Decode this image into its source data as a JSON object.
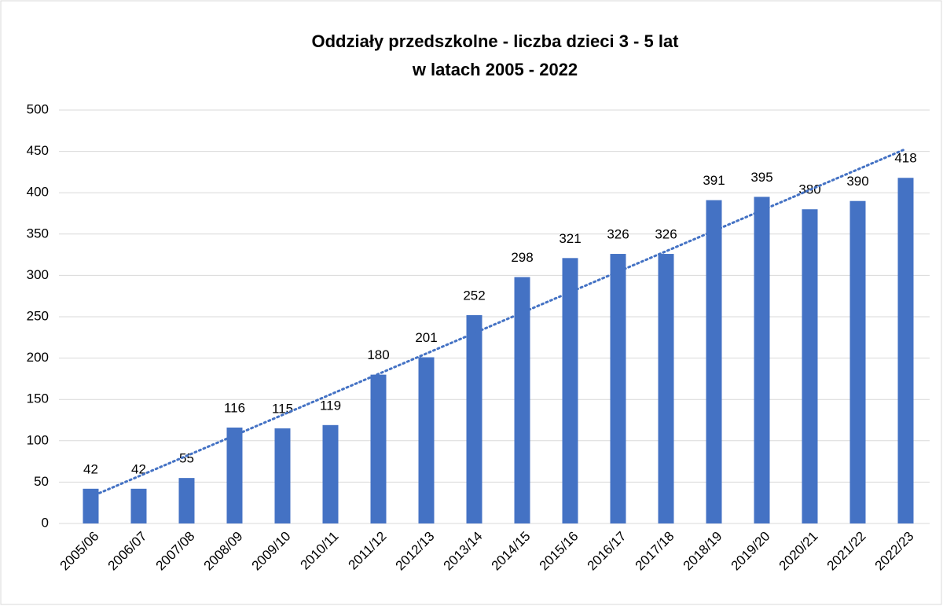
{
  "chart_data": {
    "type": "bar",
    "title": [
      "Oddziały przedszkolne - liczba dzieci 3 - 5 lat",
      "w latach 2005 - 2022"
    ],
    "categories": [
      "2005/06",
      "2006/07",
      "2007/08",
      "2008/09",
      "2009/10",
      "2010/11",
      "2011/12",
      "2012/13",
      "2013/14",
      "2014/15",
      "2015/16",
      "2016/17",
      "2017/18",
      "2018/19",
      "2019/20",
      "2020/21",
      "2021/22",
      "2022/23"
    ],
    "values": [
      42,
      42,
      55,
      116,
      115,
      119,
      180,
      201,
      252,
      298,
      321,
      326,
      326,
      391,
      395,
      380,
      390,
      418
    ],
    "color": "#4472c4",
    "trendline": "linear",
    "ylim": [
      0,
      500
    ],
    "yticks": [
      0,
      50,
      100,
      150,
      200,
      250,
      300,
      350,
      400,
      450,
      500
    ],
    "grid": true
  }
}
